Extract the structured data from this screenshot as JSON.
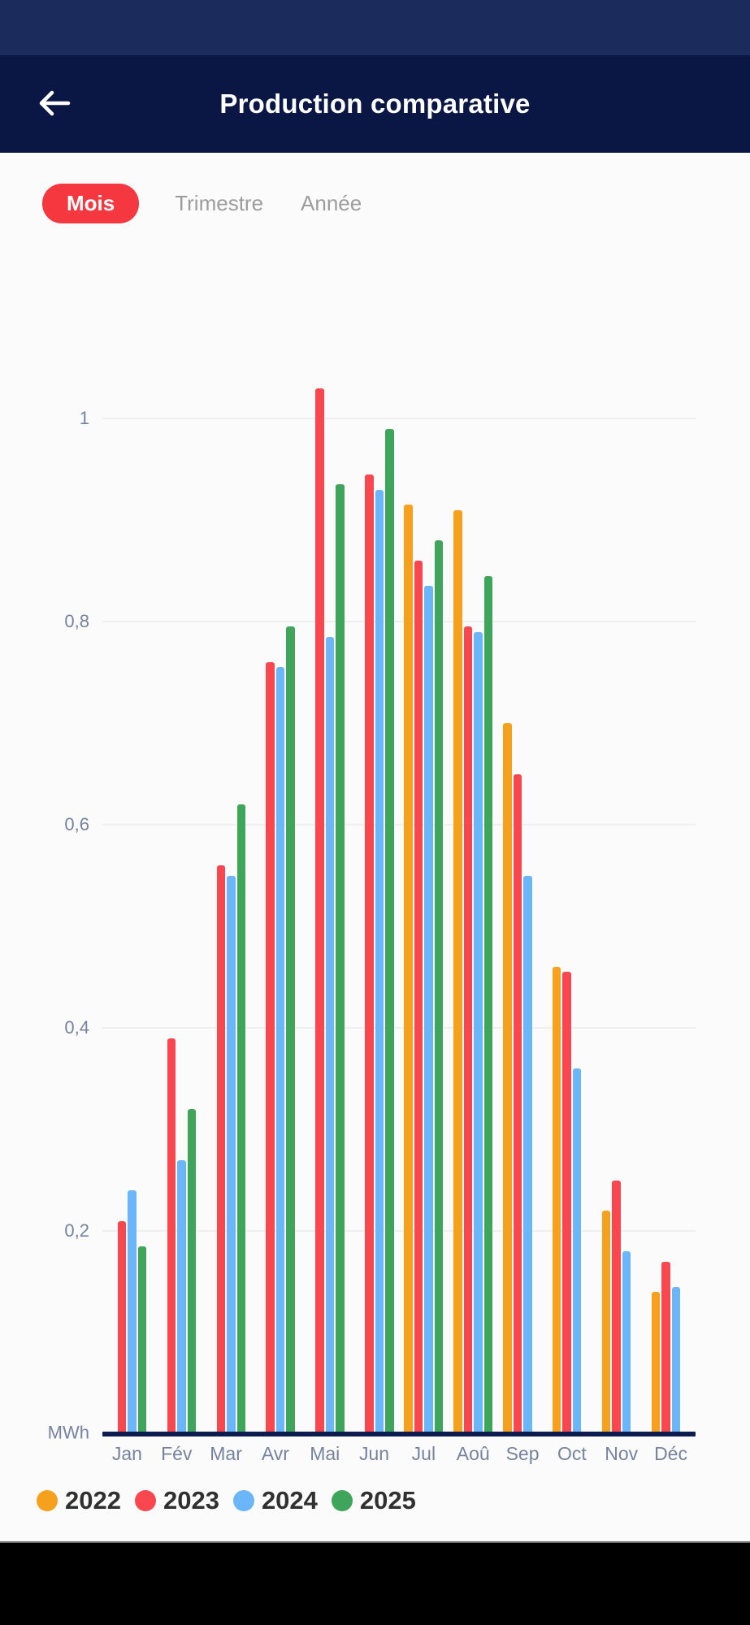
{
  "header": {
    "title": "Production comparative"
  },
  "tabs": {
    "items": [
      {
        "label": "Mois",
        "active": true
      },
      {
        "label": "Trimestre",
        "active": false
      },
      {
        "label": "Année",
        "active": false
      }
    ]
  },
  "chart_data": {
    "type": "bar",
    "title": "Production comparative",
    "unit_label": "MWh",
    "xlabel": "",
    "ylabel": "MWh",
    "ylim": [
      0,
      1.06
    ],
    "grid": true,
    "legend_position": "bottom",
    "categories": [
      "Jan",
      "Fév",
      "Mar",
      "Avr",
      "Mai",
      "Jun",
      "Jul",
      "Aoû",
      "Sep",
      "Oct",
      "Nov",
      "Déc"
    ],
    "y_ticks": [
      {
        "label": "1",
        "value": 1.0
      },
      {
        "label": "0,8",
        "value": 0.8
      },
      {
        "label": "0,6",
        "value": 0.6
      },
      {
        "label": "0,4",
        "value": 0.4
      },
      {
        "label": "0,2",
        "value": 0.2
      }
    ],
    "series": [
      {
        "name": "2022",
        "color": "#F6A11E",
        "values": [
          null,
          null,
          null,
          null,
          null,
          null,
          0.915,
          0.91,
          0.7,
          0.46,
          0.22,
          0.14
        ]
      },
      {
        "name": "2023",
        "color": "#F8474F",
        "values": [
          0.21,
          0.39,
          0.56,
          0.76,
          1.03,
          0.945,
          0.86,
          0.795,
          0.65,
          0.455,
          0.25,
          0.17
        ]
      },
      {
        "name": "2024",
        "color": "#6AB6F8",
        "values": [
          0.24,
          0.27,
          0.55,
          0.755,
          0.785,
          0.93,
          0.835,
          0.79,
          0.55,
          0.36,
          0.18,
          0.145
        ]
      },
      {
        "name": "2025",
        "color": "#3EA55B",
        "values": [
          0.185,
          0.32,
          0.62,
          0.795,
          0.935,
          0.99,
          0.88,
          0.845,
          null,
          null,
          null,
          null
        ]
      }
    ],
    "colors": {
      "status_bar": "#1B2B5C",
      "app_bar": "#0A1644",
      "active_tab": "#F5383F",
      "axis_text": "#76839F",
      "baseline": "#0D1C4E",
      "gridline": "#EFEFEF"
    }
  }
}
